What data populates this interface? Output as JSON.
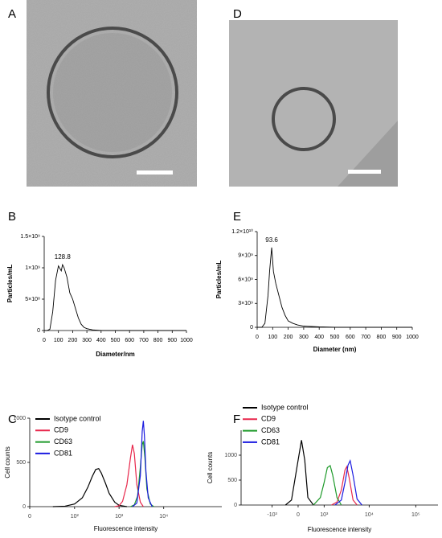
{
  "panel_labels": [
    "A",
    "B",
    "C",
    "D",
    "E",
    "F"
  ],
  "chart_data": [
    {
      "type": "line",
      "xlabel": "Diameter/nm",
      "ylabel": "Particles/mL",
      "peak_label": "128.8",
      "color": "#000000",
      "x": [
        0,
        20,
        40,
        60,
        80,
        100,
        120,
        128.8,
        140,
        160,
        180,
        200,
        220,
        240,
        260,
        280,
        300,
        340,
        400,
        1000
      ],
      "values": [
        0,
        0,
        20000000,
        300000000,
        800000000,
        1030000000,
        950000000,
        1050000000,
        1000000000,
        850000000,
        600000000,
        500000000,
        350000000,
        200000000,
        100000000,
        50000000,
        30000000,
        10000000,
        0,
        0
      ],
      "xlim": [
        0,
        1000
      ],
      "xticks": [
        0,
        100,
        200,
        300,
        400,
        500,
        600,
        700,
        800,
        900,
        1000
      ],
      "ylim": [
        0,
        1500000000
      ],
      "yticks": [
        0,
        {
          "value": 500000000,
          "label": "5×10⁸"
        },
        {
          "value": 1000000000,
          "label": "1×10⁹"
        },
        {
          "value": 1500000000,
          "label": "1.5×10⁹"
        }
      ]
    },
    {
      "type": "line",
      "xlabel": "Diameter (nm)",
      "ylabel": "Particles/mL",
      "peak_label": "93.6",
      "color": "#000000",
      "x": [
        0,
        30,
        50,
        70,
        80,
        93.6,
        105,
        120,
        140,
        160,
        180,
        200,
        230,
        260,
        300,
        350,
        400,
        450,
        500,
        1000
      ],
      "values": [
        0,
        0,
        500000000,
        4000000000,
        7000000000,
        10000000000,
        7000000000,
        5500000000,
        4000000000,
        2500000000,
        1500000000,
        800000000,
        500000000,
        300000000,
        150000000,
        100000000,
        50000000,
        30000000,
        0,
        0
      ],
      "xlim": [
        0,
        1000
      ],
      "xticks": [
        0,
        100,
        200,
        300,
        400,
        500,
        600,
        700,
        800,
        900,
        1000
      ],
      "ylim": [
        0,
        12000000000
      ],
      "yticks": [
        0,
        {
          "value": 3000000000,
          "label": "3×10⁹"
        },
        {
          "value": 6000000000,
          "label": "6×10⁹"
        },
        {
          "value": 9000000000,
          "label": "9×10⁹"
        },
        {
          "value": 12000000000,
          "label": "1.2×10¹⁰"
        }
      ]
    },
    {
      "type": "line",
      "xlabel": "Fluorescence intensity",
      "ylabel": "Cell counts",
      "xscale": "biexponential",
      "xlim": [
        0,
        200000
      ],
      "xticks": [
        0,
        {
          "value": 100,
          "label": "10²"
        },
        {
          "value": 1000,
          "label": "10³"
        },
        {
          "value": 10000,
          "label": "10⁴"
        }
      ],
      "ylim": [
        0,
        1000
      ],
      "yticks": [
        0,
        500,
        1000
      ],
      "series": [
        {
          "name": "Isotype control",
          "color": "#000000",
          "x": [
            30,
            60,
            100,
            150,
            200,
            250,
            300,
            350,
            400,
            500,
            600,
            800,
            1000,
            1500
          ],
          "values": [
            0,
            5,
            30,
            100,
            220,
            340,
            420,
            430,
            380,
            260,
            150,
            50,
            15,
            0
          ]
        },
        {
          "name": "CD9",
          "color": "#e8274b",
          "x": [
            800,
            1000,
            1200,
            1500,
            1800,
            2000,
            2200,
            2500,
            3000,
            3500
          ],
          "values": [
            0,
            10,
            60,
            250,
            550,
            700,
            600,
            250,
            50,
            0
          ]
        },
        {
          "name": "CD63",
          "color": "#1e9a2a",
          "x": [
            1800,
            2200,
            2600,
            3000,
            3300,
            3500,
            3800,
            4200,
            5000,
            6000
          ],
          "values": [
            0,
            20,
            120,
            450,
            700,
            740,
            550,
            200,
            30,
            0
          ]
        },
        {
          "name": "CD81",
          "color": "#1a1ae0",
          "x": [
            2000,
            2500,
            3000,
            3300,
            3500,
            3700,
            4000,
            4500,
            5500
          ],
          "values": [
            0,
            40,
            350,
            850,
            970,
            800,
            400,
            100,
            0
          ]
        }
      ]
    },
    {
      "type": "line",
      "xlabel": "Fluorescence intensity",
      "ylabel": "Cell counts",
      "xscale": "biexponential",
      "xlim": [
        -5000,
        300000
      ],
      "xticks": [
        {
          "value": -1000,
          "label": "-10³"
        },
        0,
        {
          "value": 1000,
          "label": "10³"
        },
        {
          "value": 10000,
          "label": "10⁴"
        },
        {
          "value": 100000,
          "label": "10⁵"
        }
      ],
      "ylim": [
        0,
        1500
      ],
      "yticks": [
        0,
        500,
        1000
      ],
      "series": [
        {
          "name": "Isotype control",
          "color": "#000000",
          "x": [
            -400,
            -200,
            0,
            100,
            200,
            300,
            500
          ],
          "values": [
            0,
            100,
            900,
            1300,
            900,
            150,
            0
          ]
        },
        {
          "name": "CD9",
          "color": "#e8274b",
          "x": [
            1500,
            2000,
            2500,
            3000,
            3300,
            3700,
            4500,
            5500
          ],
          "values": [
            0,
            60,
            300,
            700,
            770,
            550,
            100,
            0
          ]
        },
        {
          "name": "CD63",
          "color": "#1e9a2a",
          "x": [
            500,
            800,
            1000,
            1200,
            1400,
            1600,
            2000,
            2500
          ],
          "values": [
            0,
            150,
            450,
            750,
            790,
            600,
            150,
            0
          ]
        },
        {
          "name": "CD81",
          "color": "#1a1ae0",
          "x": [
            1800,
            2500,
            3000,
            3500,
            3900,
            4500,
            5500,
            7000
          ],
          "values": [
            0,
            100,
            450,
            800,
            890,
            600,
            120,
            0
          ]
        }
      ]
    }
  ]
}
